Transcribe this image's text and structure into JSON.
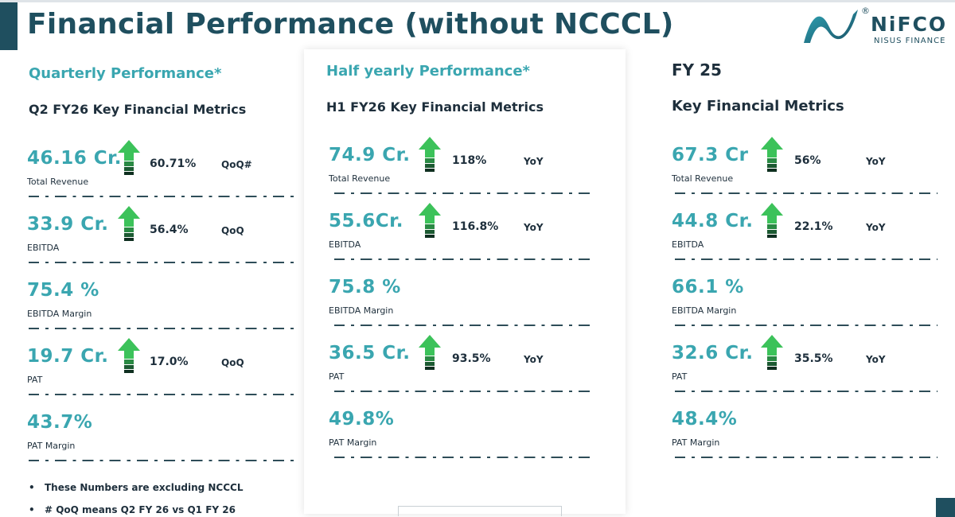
{
  "title": "Financial Performance (without NCCCL)",
  "logo": {
    "name": "NiFCO",
    "reg": "®",
    "sub": "NISUS FINANCE"
  },
  "columns": [
    {
      "heading": "Quarterly Performance*",
      "subheading": "Q2 FY26 Key Financial Metrics",
      "metrics": [
        {
          "value": "46.16 Cr.",
          "label": "Total Revenue",
          "pct": "60.71%",
          "cmp": "QoQ#",
          "arrow": true
        },
        {
          "value": "33.9 Cr.",
          "label": "EBITDA",
          "pct": "56.4%",
          "cmp": "QoQ",
          "arrow": true
        },
        {
          "value": "75.4 %",
          "label": "EBITDA Margin",
          "pct": "",
          "cmp": "",
          "arrow": false
        },
        {
          "value": "19.7 Cr.",
          "label": "PAT",
          "pct": "17.0%",
          "cmp": "QoQ",
          "arrow": true
        },
        {
          "value": "43.7%",
          "label": "PAT Margin",
          "pct": "",
          "cmp": "",
          "arrow": false
        }
      ]
    },
    {
      "heading": "Half yearly Performance*",
      "subheading": "H1 FY26 Key Financial Metrics",
      "metrics": [
        {
          "value": "74.9 Cr.",
          "label": "Total Revenue",
          "pct": "118%",
          "cmp": "YoY",
          "arrow": true
        },
        {
          "value": "55.6Cr.",
          "label": "EBITDA",
          "pct": "116.8%",
          "cmp": "YoY",
          "arrow": true
        },
        {
          "value": "75.8 %",
          "label": "EBITDA Margin",
          "pct": "",
          "cmp": "",
          "arrow": false
        },
        {
          "value": "36.5 Cr.",
          "label": "PAT",
          "pct": "93.5%",
          "cmp": "YoY",
          "arrow": true
        },
        {
          "value": "49.8%",
          "label": "PAT Margin",
          "pct": "",
          "cmp": "",
          "arrow": false
        }
      ]
    },
    {
      "heading": "FY 25",
      "subheading": "Key Financial Metrics",
      "metrics": [
        {
          "value": "67.3 Cr",
          "label": "Total Revenue",
          "pct": "56%",
          "cmp": "YoY",
          "arrow": true
        },
        {
          "value": "44.8 Cr.",
          "label": "EBITDA",
          "pct": "22.1%",
          "cmp": "YoY",
          "arrow": true
        },
        {
          "value": "66.1 %",
          "label": "EBITDA Margin",
          "pct": "",
          "cmp": "",
          "arrow": false
        },
        {
          "value": "32.6 Cr.",
          "label": "PAT",
          "pct": "35.5%",
          "cmp": "YoY",
          "arrow": true
        },
        {
          "value": "48.4%",
          "label": "PAT Margin",
          "pct": "",
          "cmp": "",
          "arrow": false
        }
      ]
    }
  ],
  "notes": [
    {
      "bullet": "•",
      "text": "These Numbers are excluding NCCCL"
    },
    {
      "bullet": "•",
      "text": "# QoQ means Q2 FY 26 vs Q1 FY 26"
    }
  ],
  "colors": {
    "teal": "#3aa6b0",
    "navy": "#1f4f5f",
    "arrow_green": "#3cc25a"
  }
}
